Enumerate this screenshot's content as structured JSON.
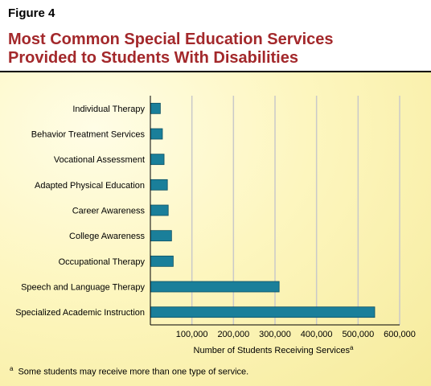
{
  "figure_label": "Figure 4",
  "title_line1": "Most Common Special Education Services",
  "title_line2": "Provided to Students With Disabilities",
  "footnote_marker": "a",
  "footnote_text": "Some students may receive more than one type of service.",
  "colors": {
    "bar": "#1a7f9a",
    "bar_stroke": "#0d4f63",
    "grid": "#c9c9c9",
    "title": "#a3282b"
  },
  "chart_data": {
    "type": "bar",
    "orientation": "horizontal",
    "title": "Most Common Special Education Services Provided to Students With Disabilities",
    "xlabel": "Number of Students Receiving Services",
    "xlabel_superscript": "a",
    "categories": [
      "Individual Therapy",
      "Behavior Treatment Services",
      "Vocational Assessment",
      "Adapted Physical Education",
      "Career Awareness",
      "College Awareness",
      "Occupational Therapy",
      "Speech and Language Therapy",
      "Specialized Academic Instruction"
    ],
    "values": [
      24000,
      29000,
      33000,
      41000,
      43000,
      51000,
      55000,
      310000,
      540000
    ],
    "xlim": [
      0,
      600000
    ],
    "xticks": [
      100000,
      200000,
      300000,
      400000,
      500000,
      600000
    ],
    "xtick_labels": [
      "100,000",
      "200,000",
      "300,000",
      "400,000",
      "500,000",
      "600,000"
    ],
    "grid": "vertical",
    "legend": "none"
  }
}
